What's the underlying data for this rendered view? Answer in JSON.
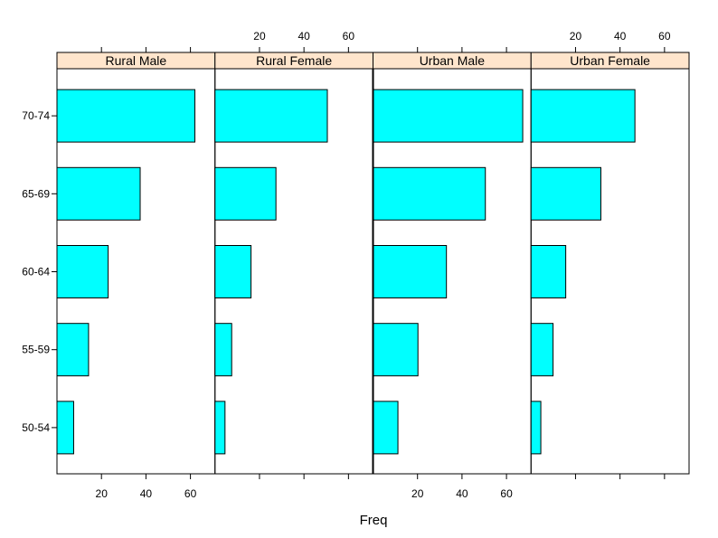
{
  "chart_data": {
    "type": "bar",
    "orientation": "horizontal",
    "xlabel": "Freq",
    "ylabel": "",
    "xlim": [
      0,
      76
    ],
    "x_ticks": [
      20,
      40,
      60
    ],
    "categories": [
      "50-54",
      "55-59",
      "60-64",
      "65-69",
      "70-74"
    ],
    "panels": [
      {
        "name": "Rural Male",
        "values": [
          7.5,
          14.2,
          23.0,
          37.4,
          62.0
        ]
      },
      {
        "name": "Rural Female",
        "values": [
          4.5,
          7.5,
          16.2,
          27.4,
          50.5
        ]
      },
      {
        "name": "Urban Male",
        "values": [
          11.2,
          20.2,
          33.0,
          50.5,
          67.3
        ]
      },
      {
        "name": "Urban Female",
        "values": [
          4.4,
          9.9,
          15.6,
          31.4,
          46.7
        ]
      }
    ],
    "grid": false,
    "colors": {
      "bar_fill": "#00ffff",
      "bar_stroke": "#000000",
      "strip_fill": "#ffe5cc",
      "frame": "#000000"
    }
  }
}
